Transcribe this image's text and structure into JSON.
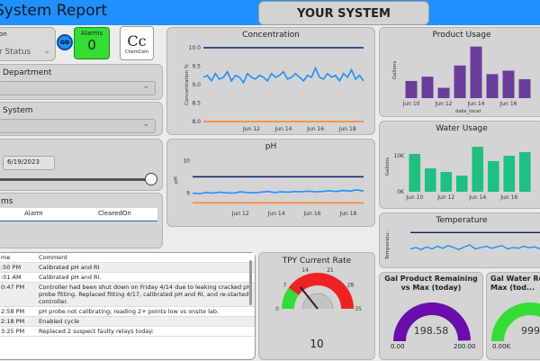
{
  "header": {
    "title": "System Report",
    "system_button": "YOUR SYSTEM"
  },
  "colors": {
    "accent": "#1e90ff",
    "purple": "#6a3d9a",
    "green": "#20c080",
    "blue_line": "#1e8fff",
    "limit_high": "#0b1f6b",
    "limit_low": "#ff7f27",
    "alarm_green": "#33dd33"
  },
  "controls": {
    "location_label": "on",
    "location_value": "r Status",
    "go_label": "GO",
    "alarms_label": "Alarms",
    "alarms_value": "0",
    "logo_text": "Cc",
    "logo_sub": "ChemCom"
  },
  "slicers": {
    "department_label": "Department",
    "system_label": "System",
    "date_value": "6/19/2023",
    "alarms_table": {
      "partial_title": "ms",
      "headers": [
        "Alarm",
        "ClearedOn"
      ]
    }
  },
  "comments": {
    "headers": [
      "me",
      "Comment"
    ],
    "rows": [
      {
        "time": ":50 PM",
        "comment": "Calibrated pH and RI"
      },
      {
        "time": ":01 AM",
        "comment": "Calibrated pH and RI."
      },
      {
        "time": "0:47 PM",
        "comment": "Controller had been shut down on Friday 4/14 due to leaking cracked pH probe fitting. Replaced fitting 4/17, calibrated pH and RI, and re-started controller."
      },
      {
        "time": "2:58 PM",
        "comment": "pH probe not calibrating, reading 2+ points low vs onsite lab."
      },
      {
        "time": "2:18 PM",
        "comment": "Enabled cycle"
      },
      {
        "time": "3:25 PM",
        "comment": "Replaced 2 suspect faulty relays today:"
      }
    ]
  },
  "chart_data": [
    {
      "type": "line",
      "title": "Concentration",
      "ylabel": "Concentration %",
      "x_ticks": [
        "Jun 12",
        "Jun 14",
        "Jun 16",
        "Jun 18"
      ],
      "y_ticks": [
        "10.0",
        "9.5",
        "9.0",
        "8.5",
        "8.0"
      ],
      "ylim": [
        8.0,
        10.0
      ],
      "series": [
        {
          "role": "data",
          "values": [
            9.2,
            9.25,
            9.1,
            9.3,
            9.15,
            9.2,
            9.35,
            9.1,
            9.25,
            9.2,
            9.05,
            9.3,
            9.2,
            9.15,
            9.25,
            9.2,
            9.1,
            9.3,
            9.2,
            9.25,
            9.35,
            9.15,
            9.2,
            9.3,
            9.2,
            9.1,
            9.25,
            9.2,
            9.45,
            9.2,
            9.15,
            9.3,
            9.2,
            9.25,
            9.1,
            9.3,
            9.2,
            9.4,
            9.15,
            9.25,
            9.1
          ]
        },
        {
          "role": "high-limit",
          "values": [
            10.0,
            10.0
          ]
        },
        {
          "role": "low-limit",
          "values": [
            8.0,
            8.0
          ]
        }
      ]
    },
    {
      "type": "line",
      "title": "pH",
      "ylabel": "pH",
      "x_ticks": [
        "Jun 12",
        "Jun 14",
        "Jun 16",
        "Jun 18"
      ],
      "y_ticks": [
        "10",
        "9"
      ],
      "ylim": [
        8.6,
        10.2
      ],
      "series": [
        {
          "role": "data",
          "values": [
            9.0,
            8.98,
            9.02,
            9.0,
            9.03,
            9.01,
            9.0,
            9.04,
            9.02,
            9.01,
            9.03,
            9.05,
            9.02,
            9.04,
            9.03,
            9.05,
            9.04,
            9.06,
            9.04,
            9.05,
            9.07,
            9.05,
            9.08,
            9.06,
            9.1,
            9.06
          ]
        },
        {
          "role": "high-limit",
          "values": [
            9.5,
            9.5
          ]
        },
        {
          "role": "low-limit",
          "values": [
            8.7,
            8.7
          ]
        }
      ]
    },
    {
      "type": "bar",
      "title": "Product Usage",
      "ylabel": "Gallons",
      "xlabel": "date_local",
      "x_ticks": [
        "Jun 10",
        "Jun 12",
        "Jun 14",
        "Jun 16"
      ],
      "values": [
        20,
        25,
        12,
        38,
        60,
        28,
        32,
        22
      ],
      "ylim": [
        0,
        65
      ]
    },
    {
      "type": "bar",
      "title": "Water Usage",
      "ylabel": "Gallons",
      "x_ticks": [
        "Jun 10",
        "Jun 12",
        "Jun 14",
        "Jun 16"
      ],
      "y_ticks": [
        "10K",
        "0K"
      ],
      "values": [
        10500,
        6500,
        5500,
        4500,
        12500,
        8500,
        10000,
        11000
      ],
      "ylim": [
        0,
        14000
      ]
    },
    {
      "type": "line",
      "title": "Temperature",
      "ylabel": "Temperatu...",
      "series": [
        {
          "role": "data",
          "values": [
            50,
            52,
            49,
            53,
            50,
            54,
            51,
            55,
            52,
            49,
            53,
            56,
            50,
            52,
            54,
            51,
            53,
            55,
            50,
            52,
            51,
            54,
            52,
            53,
            50,
            52
          ]
        },
        {
          "role": "high-limit",
          "values": [
            75,
            75
          ]
        }
      ],
      "ylim": [
        30,
        85
      ]
    }
  ],
  "gauges": {
    "tpy": {
      "title": "TPY Current Rate",
      "value": "10",
      "value_num": 10,
      "min": 0,
      "max": 35,
      "ticks": [
        "0",
        "7",
        "14",
        "21",
        "28",
        "35"
      ]
    },
    "product": {
      "title": "Gal Product Remaining vs Max (today)",
      "value": "198.58",
      "min_label": "0.00",
      "max_label": "200.00",
      "fraction": 0.993
    },
    "water": {
      "title": "Gal Water Re... Max (tod...",
      "value": "999",
      "min_label": "0.00K",
      "fraction": 0.999
    }
  }
}
